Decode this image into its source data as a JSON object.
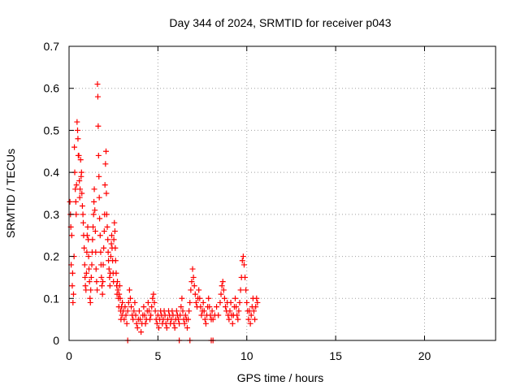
{
  "chart_data": {
    "type": "scatter",
    "title": "Day 344 of 2024, SRMTID for receiver p043",
    "xlabel": "GPS time / hours",
    "ylabel": "SRMTID / TECUs",
    "xlim": [
      0,
      24
    ],
    "ylim": [
      0,
      0.7
    ],
    "x_ticks": [
      0,
      5,
      10,
      15,
      20
    ],
    "x_tick_labels": [
      "0",
      "5",
      "10",
      "15",
      "20"
    ],
    "y_ticks": [
      0,
      0.1,
      0.2,
      0.3,
      0.4,
      0.5,
      0.6,
      0.7
    ],
    "y_tick_labels": [
      "0",
      "0.1",
      "0.2",
      "0.3",
      "0.4",
      "0.5",
      "0.6",
      "0.7"
    ],
    "grid": true,
    "marker": "+",
    "series": [
      {
        "name": "SRMTID",
        "color": "#ff0000",
        "points": [
          [
            0.05,
            0.33
          ],
          [
            0.08,
            0.3
          ],
          [
            0.1,
            0.27
          ],
          [
            0.12,
            0.18
          ],
          [
            0.15,
            0.25
          ],
          [
            0.18,
            0.13
          ],
          [
            0.2,
            0.16
          ],
          [
            0.22,
            0.09
          ],
          [
            0.25,
            0.11
          ],
          [
            0.28,
            0.2
          ],
          [
            0.3,
            0.46
          ],
          [
            0.32,
            0.4
          ],
          [
            0.35,
            0.36
          ],
          [
            0.38,
            0.33
          ],
          [
            0.4,
            0.3
          ],
          [
            0.42,
            0.37
          ],
          [
            0.45,
            0.52
          ],
          [
            0.48,
            0.5
          ],
          [
            0.5,
            0.48
          ],
          [
            0.52,
            0.44
          ],
          [
            0.55,
            0.44
          ],
          [
            0.58,
            0.38
          ],
          [
            0.6,
            0.34
          ],
          [
            0.62,
            0.36
          ],
          [
            0.65,
            0.43
          ],
          [
            0.68,
            0.39
          ],
          [
            0.7,
            0.4
          ],
          [
            0.72,
            0.35
          ],
          [
            0.75,
            0.32
          ],
          [
            0.78,
            0.3
          ],
          [
            0.8,
            0.28
          ],
          [
            0.82,
            0.25
          ],
          [
            0.85,
            0.22
          ],
          [
            0.88,
            0.18
          ],
          [
            0.9,
            0.15
          ],
          [
            0.92,
            0.13
          ],
          [
            0.95,
            0.12
          ],
          [
            0.98,
            0.16
          ],
          [
            1.0,
            0.21
          ],
          [
            1.02,
            0.25
          ],
          [
            1.05,
            0.27
          ],
          [
            1.08,
            0.24
          ],
          [
            1.1,
            0.2
          ],
          [
            1.12,
            0.17
          ],
          [
            1.15,
            0.14
          ],
          [
            1.18,
            0.1
          ],
          [
            1.2,
            0.09
          ],
          [
            1.22,
            0.12
          ],
          [
            1.25,
            0.15
          ],
          [
            1.28,
            0.18
          ],
          [
            1.3,
            0.21
          ],
          [
            1.32,
            0.24
          ],
          [
            1.35,
            0.27
          ],
          [
            1.38,
            0.3
          ],
          [
            1.4,
            0.33
          ],
          [
            1.42,
            0.36
          ],
          [
            1.45,
            0.31
          ],
          [
            1.48,
            0.26
          ],
          [
            1.5,
            0.21
          ],
          [
            1.52,
            0.17
          ],
          [
            1.55,
            0.14
          ],
          [
            1.58,
            0.12
          ],
          [
            1.6,
            0.61
          ],
          [
            1.62,
            0.58
          ],
          [
            1.64,
            0.51
          ],
          [
            1.66,
            0.44
          ],
          [
            1.68,
            0.39
          ],
          [
            1.7,
            0.34
          ],
          [
            1.72,
            0.29
          ],
          [
            1.75,
            0.25
          ],
          [
            1.78,
            0.21
          ],
          [
            1.8,
            0.18
          ],
          [
            1.82,
            0.15
          ],
          [
            1.85,
            0.13
          ],
          [
            1.88,
            0.11
          ],
          [
            1.9,
            0.14
          ],
          [
            1.92,
            0.18
          ],
          [
            1.95,
            0.22
          ],
          [
            1.98,
            0.26
          ],
          [
            2.0,
            0.3
          ],
          [
            2.02,
            0.37
          ],
          [
            2.05,
            0.42
          ],
          [
            2.08,
            0.45
          ],
          [
            2.1,
            0.35
          ],
          [
            2.12,
            0.3
          ],
          [
            2.15,
            0.27
          ],
          [
            2.18,
            0.24
          ],
          [
            2.2,
            0.21
          ],
          [
            2.22,
            0.19
          ],
          [
            2.25,
            0.17
          ],
          [
            2.28,
            0.15
          ],
          [
            2.3,
            0.13
          ],
          [
            2.32,
            0.16
          ],
          [
            2.35,
            0.2
          ],
          [
            2.38,
            0.23
          ],
          [
            2.4,
            0.25
          ],
          [
            2.42,
            0.22
          ],
          [
            2.45,
            0.19
          ],
          [
            2.48,
            0.16
          ],
          [
            2.5,
            0.14
          ],
          [
            2.52,
            0.24
          ],
          [
            2.55,
            0.28
          ],
          [
            2.58,
            0.26
          ],
          [
            2.6,
            0.22
          ],
          [
            2.62,
            0.19
          ],
          [
            2.65,
            0.16
          ],
          [
            2.68,
            0.13
          ],
          [
            2.7,
            0.11
          ],
          [
            2.72,
            0.14
          ],
          [
            2.75,
            0.12
          ],
          [
            2.78,
            0.1
          ],
          [
            2.8,
            0.08
          ],
          [
            2.82,
            0.11
          ],
          [
            2.85,
            0.13
          ],
          [
            2.88,
            0.1
          ],
          [
            2.9,
            0.07
          ],
          [
            2.92,
            0.05
          ],
          [
            2.95,
            0.08
          ],
          [
            2.98,
            0.06
          ],
          [
            3.0,
            0.09
          ],
          [
            3.05,
            0.07
          ],
          [
            3.1,
            0.05
          ],
          [
            3.15,
            0.08
          ],
          [
            3.2,
            0.06
          ],
          [
            3.25,
            0.04
          ],
          [
            3.3,
            0.07
          ],
          [
            3.35,
            0.09
          ],
          [
            3.4,
            0.12
          ],
          [
            3.45,
            0.1
          ],
          [
            3.5,
            0.08
          ],
          [
            3.55,
            0.06
          ],
          [
            3.6,
            0.05
          ],
          [
            3.65,
            0.07
          ],
          [
            3.7,
            0.09
          ],
          [
            3.75,
            0.06
          ],
          [
            3.8,
            0.04
          ],
          [
            3.85,
            0.03
          ],
          [
            3.9,
            0.05
          ],
          [
            3.95,
            0.07
          ],
          [
            4.0,
            0.05
          ],
          [
            4.05,
            0.02
          ],
          [
            4.1,
            0.04
          ],
          [
            4.15,
            0.06
          ],
          [
            4.2,
            0.08
          ],
          [
            4.25,
            0.06
          ],
          [
            4.3,
            0.04
          ],
          [
            4.35,
            0.05
          ],
          [
            4.4,
            0.07
          ],
          [
            4.45,
            0.09
          ],
          [
            4.5,
            0.07
          ],
          [
            4.55,
            0.05
          ],
          [
            4.6,
            0.06
          ],
          [
            4.65,
            0.08
          ],
          [
            4.7,
            0.1
          ],
          [
            4.75,
            0.11
          ],
          [
            4.8,
            0.09
          ],
          [
            4.85,
            0.07
          ],
          [
            4.9,
            0.05
          ],
          [
            4.95,
            0.04
          ],
          [
            5.0,
            0.06
          ],
          [
            5.05,
            0.03
          ],
          [
            5.1,
            0.05
          ],
          [
            5.15,
            0.07
          ],
          [
            5.2,
            0.06
          ],
          [
            5.25,
            0.04
          ],
          [
            5.3,
            0.05
          ],
          [
            5.35,
            0.07
          ],
          [
            5.4,
            0.06
          ],
          [
            5.45,
            0.04
          ],
          [
            5.5,
            0.03
          ],
          [
            5.55,
            0.05
          ],
          [
            5.6,
            0.07
          ],
          [
            5.65,
            0.06
          ],
          [
            5.7,
            0.04
          ],
          [
            5.75,
            0.05
          ],
          [
            5.8,
            0.07
          ],
          [
            5.85,
            0.06
          ],
          [
            5.9,
            0.04
          ],
          [
            5.95,
            0.03
          ],
          [
            6.0,
            0.05
          ],
          [
            6.05,
            0.07
          ],
          [
            6.1,
            0.06
          ],
          [
            6.15,
            0.05
          ],
          [
            6.2,
            0.04
          ],
          [
            6.25,
            0.06
          ],
          [
            6.3,
            0.08
          ],
          [
            6.35,
            0.1
          ],
          [
            6.4,
            0.07
          ],
          [
            6.45,
            0.05
          ],
          [
            6.5,
            0.04
          ],
          [
            6.55,
            0.06
          ],
          [
            6.6,
            0.05
          ],
          [
            6.65,
            0.03
          ],
          [
            6.7,
            0.05
          ],
          [
            6.75,
            0.07
          ],
          [
            6.8,
            0.09
          ],
          [
            6.85,
            0.12
          ],
          [
            6.9,
            0.14
          ],
          [
            6.95,
            0.17
          ],
          [
            7.0,
            0.15
          ],
          [
            7.05,
            0.13
          ],
          [
            7.1,
            0.11
          ],
          [
            7.15,
            0.09
          ],
          [
            7.2,
            0.08
          ],
          [
            7.25,
            0.1
          ],
          [
            7.3,
            0.12
          ],
          [
            7.35,
            0.1
          ],
          [
            7.4,
            0.08
          ],
          [
            7.45,
            0.06
          ],
          [
            7.5,
            0.07
          ],
          [
            7.55,
            0.09
          ],
          [
            7.6,
            0.07
          ],
          [
            7.65,
            0.05
          ],
          [
            7.7,
            0.04
          ],
          [
            7.75,
            0.06
          ],
          [
            7.8,
            0.08
          ],
          [
            7.85,
            0.1
          ],
          [
            7.9,
            0.08
          ],
          [
            7.95,
            0.06
          ],
          [
            8.0,
            0.05
          ],
          [
            8.05,
            0.07
          ],
          [
            8.1,
            0.05
          ],
          [
            8.2,
            0.06
          ],
          [
            8.3,
            0.08
          ],
          [
            8.4,
            0.06
          ],
          [
            8.5,
            0.09
          ],
          [
            8.55,
            0.11
          ],
          [
            8.6,
            0.13
          ],
          [
            8.65,
            0.14
          ],
          [
            8.7,
            0.12
          ],
          [
            8.75,
            0.1
          ],
          [
            8.8,
            0.08
          ],
          [
            8.85,
            0.07
          ],
          [
            8.9,
            0.09
          ],
          [
            8.95,
            0.06
          ],
          [
            9.0,
            0.05
          ],
          [
            9.05,
            0.07
          ],
          [
            9.1,
            0.09
          ],
          [
            9.15,
            0.06
          ],
          [
            9.2,
            0.04
          ],
          [
            9.25,
            0.06
          ],
          [
            9.3,
            0.08
          ],
          [
            9.35,
            0.1
          ],
          [
            9.4,
            0.08
          ],
          [
            9.45,
            0.06
          ],
          [
            9.5,
            0.05
          ],
          [
            9.55,
            0.07
          ],
          [
            9.6,
            0.09
          ],
          [
            9.65,
            0.12
          ],
          [
            9.7,
            0.15
          ],
          [
            9.75,
            0.19
          ],
          [
            9.8,
            0.2
          ],
          [
            9.85,
            0.18
          ],
          [
            9.9,
            0.15
          ],
          [
            9.95,
            0.12
          ],
          [
            10.0,
            0.09
          ],
          [
            10.05,
            0.07
          ],
          [
            10.1,
            0.05
          ],
          [
            10.15,
            0.07
          ],
          [
            10.2,
            0.04
          ],
          [
            10.25,
            0.06
          ],
          [
            10.3,
            0.08
          ],
          [
            10.35,
            0.1
          ],
          [
            10.4,
            0.07
          ],
          [
            10.45,
            0.05
          ],
          [
            10.5,
            0.08
          ],
          [
            10.55,
            0.1
          ],
          [
            10.6,
            0.09
          ],
          [
            3.3,
            0.0
          ],
          [
            6.8,
            0.0
          ],
          [
            8.0,
            0.0
          ],
          [
            8.1,
            0.0
          ],
          [
            6.2,
            0.0
          ]
        ]
      }
    ]
  }
}
